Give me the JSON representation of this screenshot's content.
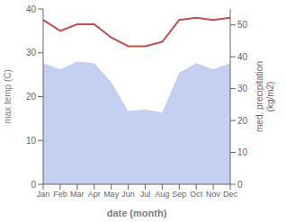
{
  "chart_data": {
    "type": "line",
    "xlabel": "date (month)",
    "ylabel": "max temp (C)",
    "y2label": "med. precipitation\n(kg/m2)",
    "categories": [
      "Jan",
      "Feb",
      "Mar",
      "Apr",
      "May",
      "Jun",
      "Jul",
      "Aug",
      "Sep",
      "Oct",
      "Nov",
      "Dec"
    ],
    "series": [
      {
        "type": "area",
        "color": "#c5cff2",
        "axis": "y2",
        "values": [
          38.0,
          36.0,
          38.5,
          38.0,
          32.0,
          23.0,
          23.5,
          22.5,
          35.0,
          38.0,
          36.0,
          38.0
        ]
      },
      {
        "type": "line",
        "color": "#c0504d",
        "values": [
          37.5,
          35.0,
          36.5,
          36.5,
          33.5,
          31.5,
          31.5,
          32.5,
          37.5,
          38.0,
          37.5,
          38.0
        ]
      }
    ],
    "ylim": [
      0,
      40
    ],
    "yticks": [
      0,
      10,
      20,
      30,
      40
    ],
    "y2lim": [
      0,
      55
    ],
    "y2ticks": [
      0,
      10,
      20,
      30,
      40,
      50
    ],
    "grid": false
  }
}
